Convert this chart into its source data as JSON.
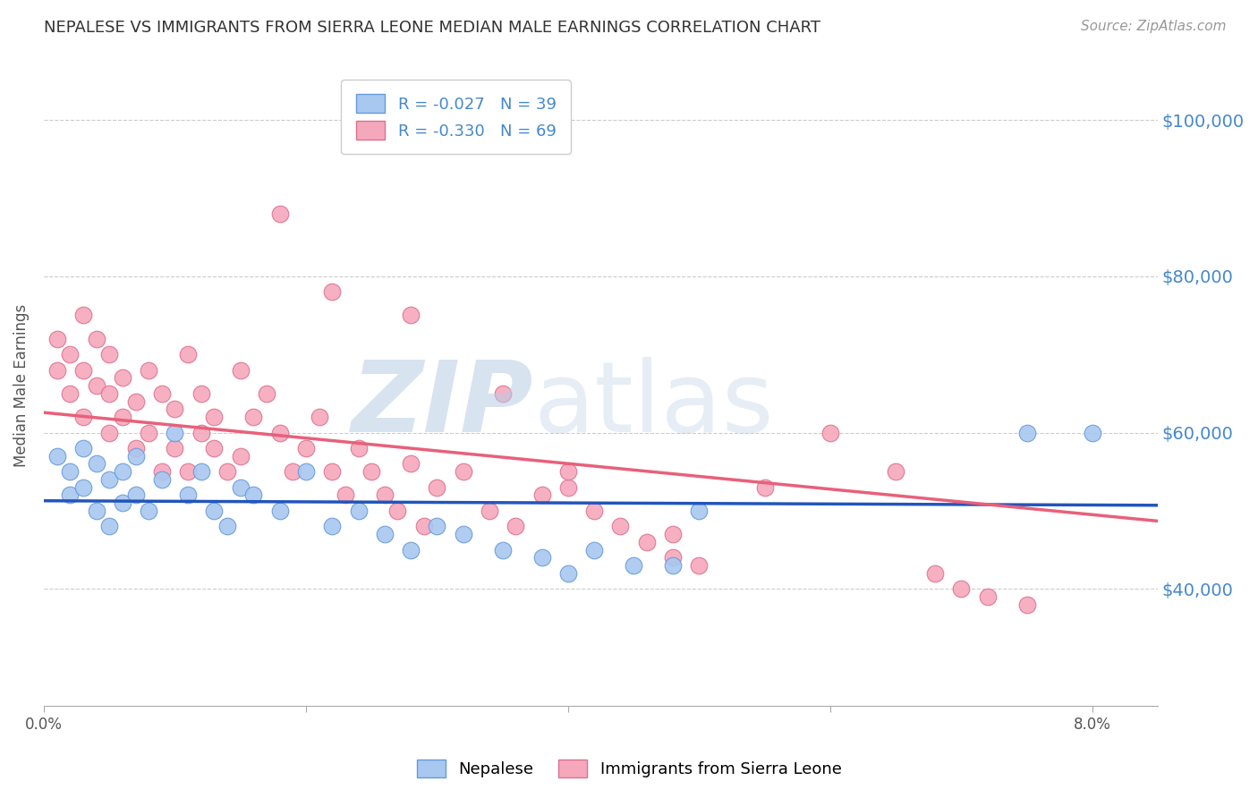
{
  "title": "NEPALESE VS IMMIGRANTS FROM SIERRA LEONE MEDIAN MALE EARNINGS CORRELATION CHART",
  "source": "Source: ZipAtlas.com",
  "ylabel": "Median Male Earnings",
  "y_tick_labels": [
    "$40,000",
    "$60,000",
    "$80,000",
    "$100,000"
  ],
  "y_tick_values": [
    40000,
    60000,
    80000,
    100000
  ],
  "ylim": [
    25000,
    107000
  ],
  "xlim": [
    0.0,
    0.085
  ],
  "x_tick_values": [
    0.0,
    0.02,
    0.04,
    0.06,
    0.08
  ],
  "x_tick_labels": [
    "0.0%",
    "",
    "",
    "",
    "8.0%"
  ],
  "blue_R": -0.027,
  "blue_N": 39,
  "pink_R": -0.33,
  "pink_N": 69,
  "blue_color": "#a8c8f0",
  "pink_color": "#f5a8bc",
  "blue_line_color": "#2255bb",
  "pink_line_color": "#e8607a",
  "blue_edge_color": "#6699dd",
  "pink_edge_color": "#dd7090",
  "legend_blue_label": "R = -0.027   N = 39",
  "legend_pink_label": "R = -0.330   N = 69",
  "background_color": "#ffffff",
  "grid_color": "#cccccc",
  "axis_label_color": "#4488cc",
  "title_color": "#333333",
  "blue_x": [
    0.001,
    0.002,
    0.002,
    0.003,
    0.003,
    0.004,
    0.004,
    0.005,
    0.005,
    0.006,
    0.006,
    0.007,
    0.007,
    0.008,
    0.009,
    0.01,
    0.011,
    0.012,
    0.013,
    0.014,
    0.015,
    0.016,
    0.018,
    0.02,
    0.022,
    0.024,
    0.026,
    0.028,
    0.03,
    0.032,
    0.035,
    0.038,
    0.04,
    0.042,
    0.045,
    0.048,
    0.05,
    0.075,
    0.08
  ],
  "blue_y": [
    57000,
    52000,
    55000,
    58000,
    53000,
    50000,
    56000,
    54000,
    48000,
    55000,
    51000,
    57000,
    52000,
    50000,
    54000,
    60000,
    52000,
    55000,
    50000,
    48000,
    53000,
    52000,
    50000,
    55000,
    48000,
    50000,
    47000,
    45000,
    48000,
    47000,
    45000,
    44000,
    42000,
    45000,
    43000,
    43000,
    50000,
    60000,
    60000
  ],
  "pink_x": [
    0.001,
    0.001,
    0.002,
    0.002,
    0.003,
    0.003,
    0.003,
    0.004,
    0.004,
    0.005,
    0.005,
    0.005,
    0.006,
    0.006,
    0.007,
    0.007,
    0.008,
    0.008,
    0.009,
    0.009,
    0.01,
    0.01,
    0.011,
    0.011,
    0.012,
    0.012,
    0.013,
    0.013,
    0.014,
    0.015,
    0.015,
    0.016,
    0.017,
    0.018,
    0.019,
    0.02,
    0.021,
    0.022,
    0.023,
    0.024,
    0.025,
    0.026,
    0.027,
    0.028,
    0.029,
    0.03,
    0.032,
    0.034,
    0.036,
    0.038,
    0.04,
    0.042,
    0.044,
    0.046,
    0.048,
    0.05,
    0.018,
    0.022,
    0.028,
    0.035,
    0.04,
    0.048,
    0.055,
    0.06,
    0.065,
    0.068,
    0.07,
    0.072,
    0.075
  ],
  "pink_y": [
    68000,
    72000,
    65000,
    70000,
    75000,
    62000,
    68000,
    66000,
    72000,
    65000,
    70000,
    60000,
    67000,
    62000,
    64000,
    58000,
    68000,
    60000,
    65000,
    55000,
    58000,
    63000,
    70000,
    55000,
    65000,
    60000,
    58000,
    62000,
    55000,
    68000,
    57000,
    62000,
    65000,
    60000,
    55000,
    58000,
    62000,
    55000,
    52000,
    58000,
    55000,
    52000,
    50000,
    56000,
    48000,
    53000,
    55000,
    50000,
    48000,
    52000,
    53000,
    50000,
    48000,
    46000,
    44000,
    43000,
    88000,
    78000,
    75000,
    65000,
    55000,
    47000,
    53000,
    60000,
    55000,
    42000,
    40000,
    39000,
    38000
  ]
}
